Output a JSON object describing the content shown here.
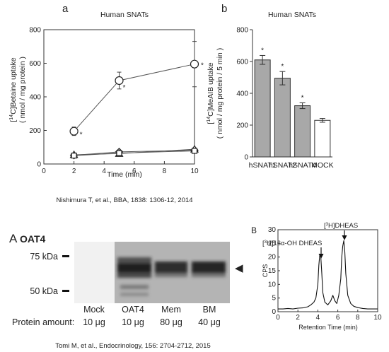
{
  "panel_a": {
    "letter": "a",
    "title": "Human SNATs",
    "ylabel_line1_sup": "14",
    "ylabel_line1_rest": "C]Betaine uptake",
    "ylabel_line2": "( nmol / mg protein )",
    "xlabel": "Time (min)",
    "star": "*"
  },
  "panel_b": {
    "letter": "b",
    "title": "Human SNATs",
    "ylabel_line1_sup": "14",
    "ylabel_line1_rest": "C]MeAIB uptake",
    "ylabel_line2": "( nmol / mg protein / 5 min )",
    "star": "*"
  },
  "citation_top": "Nishimura T, et al., BBA, 1838: 1306-12, 2014",
  "panel_A": {
    "letter": "A",
    "title": "OAT4",
    "marker_75": "75 kDa",
    "marker_50": "50 kDa",
    "arrow_glyph": "◀",
    "lanes": [
      "Mock",
      "OAT4",
      "Mem",
      "BM"
    ],
    "protein_label": "Protein amount:",
    "amounts": [
      "10 μg",
      "10 μg",
      "80 μg",
      "40 μg"
    ]
  },
  "panel_B": {
    "letter": "B",
    "ylabel": "CPS",
    "xlabel": "Retention Time (min)",
    "peak1_sup": "3",
    "peak1_rest": "H]16α-OH DHEAS",
    "peak2_sup": "3",
    "peak2_rest": "H]DHEAS"
  },
  "citation_bottom": "Tomi M, et al., Endocrinology, 156: 2704-2712, 2015",
  "chart_data": [
    {
      "type": "scatter",
      "title": "Human SNATs",
      "xlabel": "Time (min)",
      "ylabel": "[14C]Betaine uptake ( nmol / mg protein )",
      "xlim": [
        0,
        10
      ],
      "ylim": [
        0,
        800
      ],
      "xticks": [
        0,
        2,
        4,
        6,
        8,
        10
      ],
      "yticks": [
        0,
        200,
        400,
        600,
        800
      ],
      "x": [
        2,
        5,
        10
      ],
      "series": [
        {
          "marker": "circle",
          "values": [
            195,
            497,
            595
          ],
          "errors": [
            25,
            50,
            135
          ],
          "significant": [
            true,
            true,
            true
          ]
        },
        {
          "marker": "diamond",
          "values": [
            52,
            72,
            82
          ],
          "errors": [
            5,
            6,
            8
          ]
        },
        {
          "marker": "triangle",
          "values": [
            55,
            62,
            88
          ],
          "errors": [
            5,
            6,
            8
          ]
        },
        {
          "marker": "square",
          "values": [
            50,
            65,
            78
          ],
          "errors": [
            5,
            6,
            8
          ]
        }
      ]
    },
    {
      "type": "bar",
      "title": "Human SNATs",
      "ylabel": "[14C]MeAIB uptake ( nmol / mg protein / 5 min )",
      "ylim": [
        0,
        800
      ],
      "yticks": [
        0,
        200,
        400,
        600,
        800
      ],
      "categories": [
        "hSNAT1",
        "hSNAT2",
        "hSNAT4",
        "MOCK"
      ],
      "values": [
        610,
        495,
        322,
        230
      ],
      "errors": [
        28,
        42,
        18,
        12
      ],
      "significant": [
        true,
        true,
        true,
        false
      ],
      "colors": [
        "#a8a8a8",
        "#a8a8a8",
        "#a8a8a8",
        "#ffffff"
      ]
    },
    {
      "type": "line",
      "ylabel": "CPS",
      "xlabel": "Retention Time (min)",
      "xlim": [
        0,
        10
      ],
      "ylim": [
        0,
        30
      ],
      "xticks": [
        0,
        2,
        4,
        6,
        8,
        10
      ],
      "yticks": [
        0,
        5,
        10,
        15,
        20,
        25,
        30
      ],
      "x": [
        0,
        0.5,
        1,
        1.5,
        2,
        2.5,
        3,
        3.3,
        3.6,
        3.8,
        4.0,
        4.1,
        4.2,
        4.3,
        4.4,
        4.5,
        4.7,
        5.0,
        5.3,
        5.5,
        5.7,
        5.9,
        6.1,
        6.3,
        6.4,
        6.5,
        6.6,
        6.7,
        6.8,
        7.0,
        7.3,
        7.6,
        8,
        8.5,
        9,
        9.5,
        10
      ],
      "values": [
        1,
        1,
        1.2,
        1,
        1.3,
        1.4,
        1.8,
        2.5,
        3.5,
        5,
        10,
        17,
        21,
        20,
        14,
        7,
        3.5,
        2.5,
        4,
        6,
        4,
        3,
        6,
        12,
        20,
        24,
        26,
        22,
        14,
        6,
        3,
        2,
        1.5,
        1.2,
        1,
        1,
        1
      ]
    }
  ]
}
